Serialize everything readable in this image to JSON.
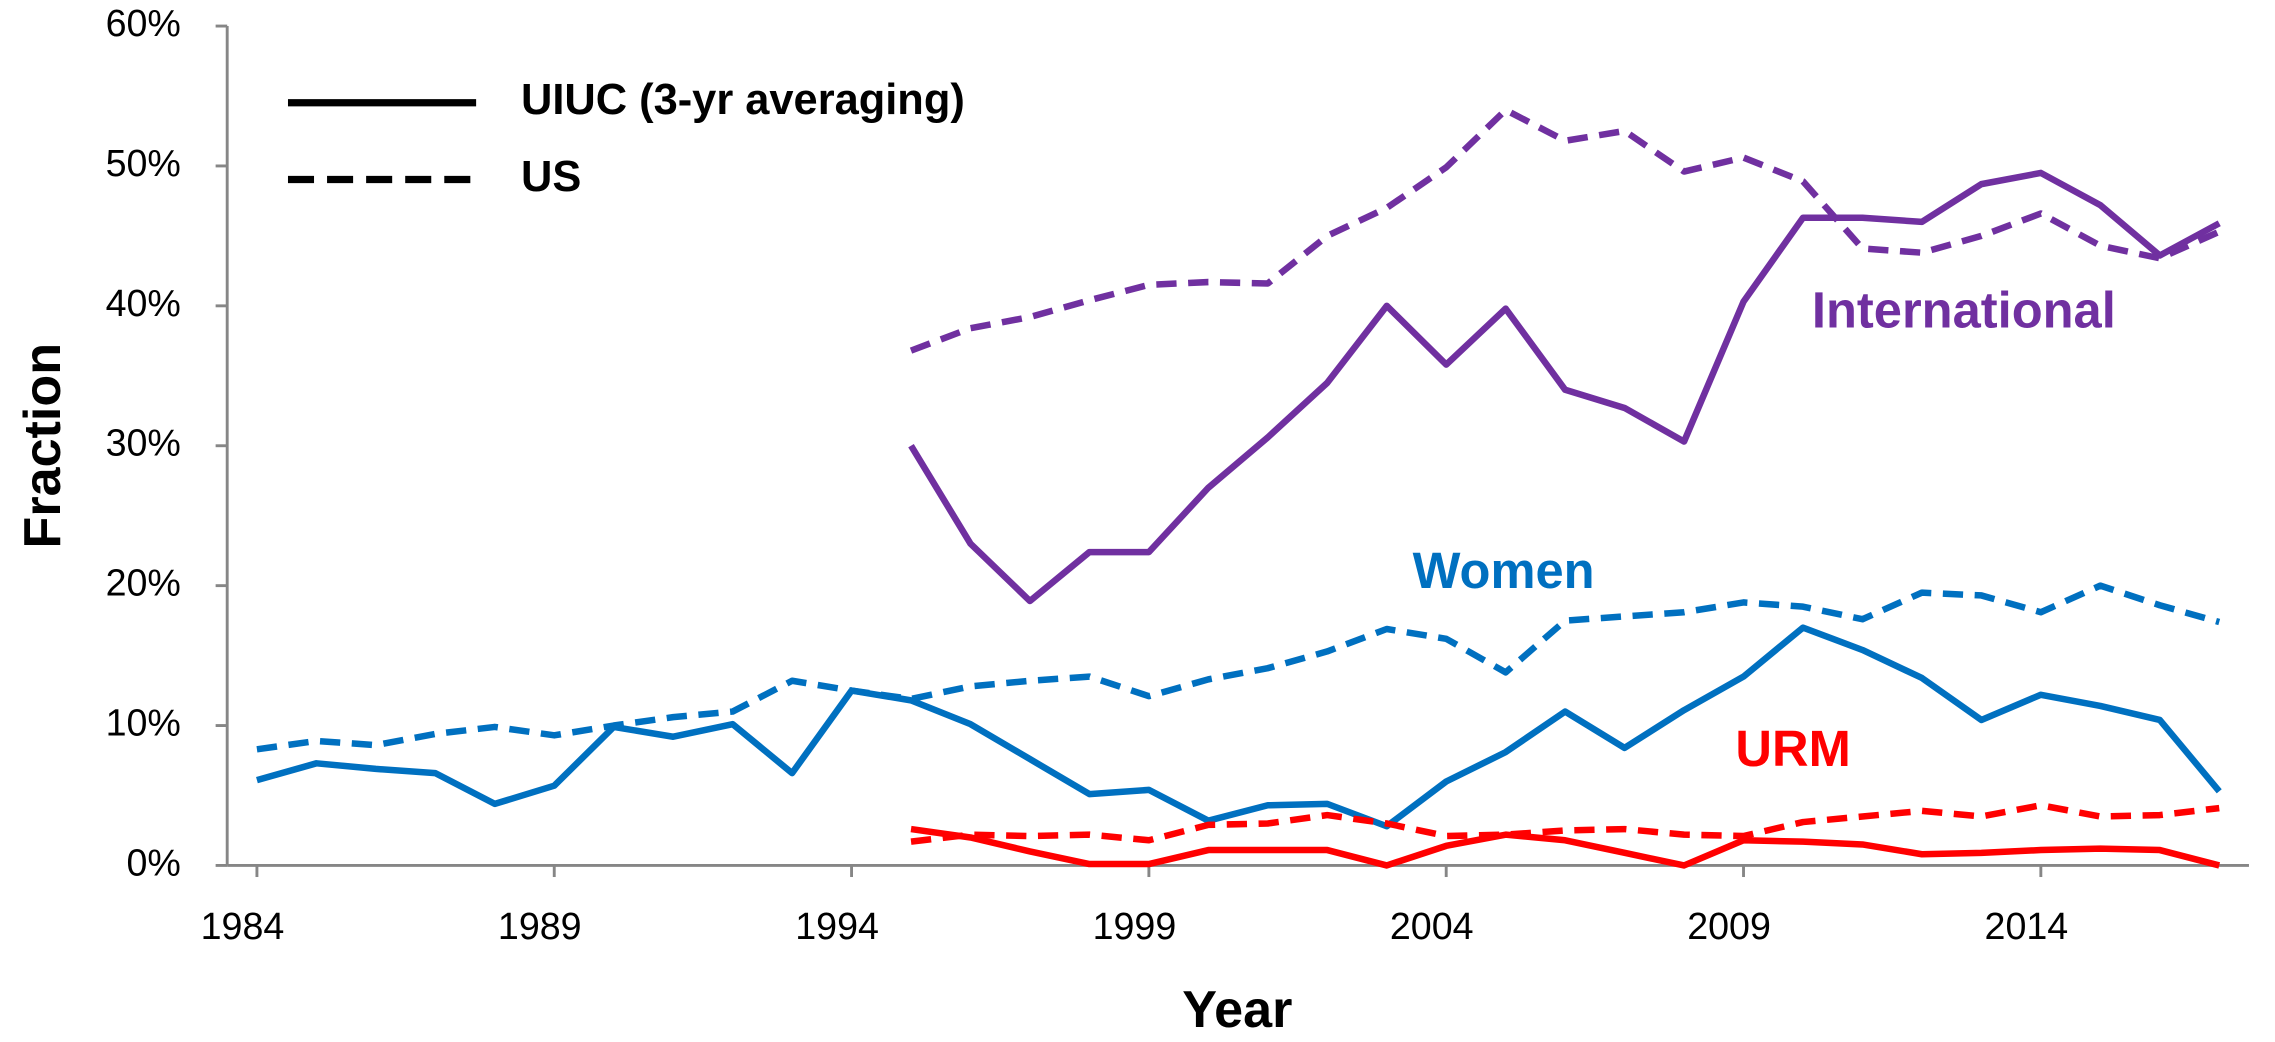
{
  "chart_data": {
    "type": "line",
    "x_label": "Year",
    "y_label": "Fraction",
    "x": [
      1984,
      1985,
      1986,
      1987,
      1988,
      1989,
      1990,
      1991,
      1992,
      1993,
      1994,
      1995,
      1996,
      1997,
      1998,
      1999,
      2000,
      2001,
      2002,
      2003,
      2004,
      2005,
      2006,
      2007,
      2008,
      2009,
      2010,
      2011,
      2012,
      2013,
      2014,
      2015,
      2016,
      2017
    ],
    "xlim": [
      1983.5,
      2017.5
    ],
    "xticks": [
      1984,
      1989,
      1994,
      1999,
      2004,
      2009,
      2014
    ],
    "ylim": [
      0,
      60
    ],
    "yticks": [
      {
        "value": 0,
        "label": "0%"
      },
      {
        "value": 10,
        "label": "10%"
      },
      {
        "value": 20,
        "label": "20%"
      },
      {
        "value": 30,
        "label": "30%"
      },
      {
        "value": 40,
        "label": "40%"
      },
      {
        "value": 50,
        "label": "50%"
      },
      {
        "value": 60,
        "label": "60%"
      }
    ],
    "legend": [
      {
        "label": "UIUC (3-yr averaging)",
        "dashed": false
      },
      {
        "label": "US",
        "dashed": true
      }
    ],
    "series": [
      {
        "name": "International",
        "color": "#7030a0",
        "dashed": false,
        "values": [
          null,
          null,
          null,
          null,
          null,
          null,
          null,
          null,
          null,
          null,
          null,
          30.0,
          23.0,
          18.9,
          22.4,
          22.4,
          27.0,
          30.6,
          34.5,
          40.0,
          35.8,
          39.8,
          34.0,
          32.7,
          30.3,
          40.3,
          46.3,
          46.3,
          46.0,
          48.7,
          49.5,
          47.2,
          43.6,
          45.9
        ]
      },
      {
        "name": "International",
        "color": "#7030a0",
        "dashed": true,
        "values": [
          null,
          null,
          null,
          null,
          null,
          null,
          null,
          null,
          null,
          null,
          null,
          36.8,
          38.4,
          39.2,
          40.4,
          41.5,
          41.7,
          41.6,
          45.0,
          47.0,
          49.9,
          54.0,
          51.8,
          52.5,
          49.6,
          50.6,
          48.9,
          44.1,
          43.8,
          45.0,
          46.6,
          44.3,
          43.4,
          45.3
        ]
      },
      {
        "name": "Women",
        "color": "#0070c0",
        "dashed": false,
        "values": [
          6.1,
          7.3,
          6.9,
          6.6,
          4.4,
          5.7,
          9.9,
          9.2,
          10.1,
          6.6,
          12.5,
          11.8,
          10.1,
          7.6,
          5.1,
          5.4,
          3.2,
          4.3,
          4.4,
          2.8,
          6.0,
          8.1,
          11.0,
          8.4,
          11.1,
          13.5,
          17.0,
          15.4,
          13.4,
          10.4,
          12.2,
          11.4,
          10.4,
          5.3
        ]
      },
      {
        "name": "Women",
        "color": "#0070c0",
        "dashed": true,
        "values": [
          8.3,
          8.9,
          8.6,
          9.4,
          9.9,
          9.3,
          10.0,
          10.6,
          11.0,
          13.2,
          12.5,
          11.9,
          12.8,
          13.2,
          13.5,
          12.1,
          13.3,
          14.1,
          15.3,
          16.9,
          16.2,
          13.8,
          17.5,
          17.8,
          18.1,
          18.8,
          18.5,
          17.6,
          19.5,
          19.3,
          18.1,
          20.0,
          18.6,
          17.4
        ]
      },
      {
        "name": "URM",
        "color": "#ff0000",
        "dashed": false,
        "values": [
          null,
          null,
          null,
          null,
          null,
          null,
          null,
          null,
          null,
          null,
          null,
          2.6,
          2.0,
          1.0,
          0.1,
          0.1,
          1.1,
          1.1,
          1.1,
          0.0,
          1.4,
          2.2,
          1.8,
          0.9,
          0.0,
          1.8,
          1.7,
          1.5,
          0.8,
          0.9,
          1.1,
          1.2,
          1.1,
          0.0
        ]
      },
      {
        "name": "URM",
        "color": "#ff0000",
        "dashed": true,
        "values": [
          null,
          null,
          null,
          null,
          null,
          null,
          null,
          null,
          null,
          null,
          null,
          1.7,
          2.2,
          2.1,
          2.2,
          1.8,
          2.9,
          3.0,
          3.6,
          3.0,
          2.1,
          2.2,
          2.5,
          2.6,
          2.2,
          2.1,
          3.1,
          3.5,
          3.9,
          3.5,
          4.3,
          3.5,
          3.6,
          4.1
        ]
      }
    ]
  }
}
